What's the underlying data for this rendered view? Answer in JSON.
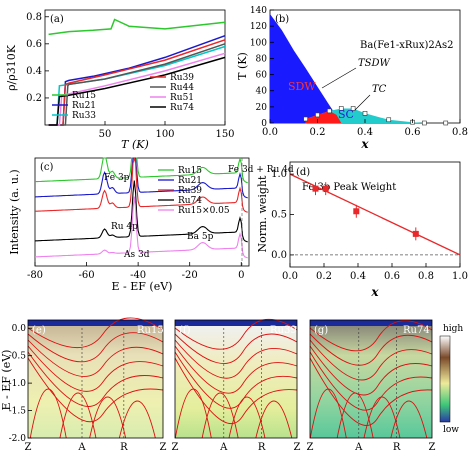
{
  "chart_data": [
    {
      "panel": "(a)",
      "type": "line",
      "xlabel": "T (K)",
      "ylabel": "ρ/ρ310K",
      "xlim": [
        0,
        150
      ],
      "ylim": [
        0,
        0.85
      ],
      "xticks": [
        "50",
        "100",
        "150"
      ],
      "yticks": [
        "0.2",
        "0.4",
        "0.6",
        "0.8"
      ],
      "legend_placement": "bottom-right",
      "series": [
        {
          "name": "Ru15",
          "color": "#2dc82d",
          "x": [
            3,
            20,
            40,
            55,
            58,
            70,
            100,
            150
          ],
          "y": [
            0.67,
            0.69,
            0.7,
            0.71,
            0.78,
            0.73,
            0.71,
            0.76
          ]
        },
        {
          "name": "Ru21",
          "color": "#1a1acc",
          "x": [
            3,
            15,
            17,
            20,
            40,
            70,
            100,
            150
          ],
          "y": [
            0.0,
            0.0,
            0.32,
            0.33,
            0.36,
            0.42,
            0.5,
            0.66
          ]
        },
        {
          "name": "Ru33",
          "color": "#00c8c8",
          "x": [
            3,
            10,
            12,
            20,
            50,
            100,
            150
          ],
          "y": [
            0.0,
            0.0,
            0.29,
            0.3,
            0.34,
            0.44,
            0.58
          ]
        },
        {
          "name": "Ru39",
          "color": "#e8282a",
          "x": [
            3,
            15,
            17,
            20,
            50,
            100,
            150
          ],
          "y": [
            0.0,
            0.0,
            0.3,
            0.31,
            0.37,
            0.48,
            0.63
          ]
        },
        {
          "name": "Ru44",
          "color": "#555555",
          "x": [
            3,
            17,
            19,
            20,
            50,
            100,
            150
          ],
          "y": [
            0.0,
            0.0,
            0.29,
            0.3,
            0.34,
            0.45,
            0.6
          ]
        },
        {
          "name": "Ru51",
          "color": "#ee82ee",
          "x": [
            3,
            12,
            14,
            20,
            50,
            100,
            150
          ],
          "y": [
            0.0,
            0.0,
            0.22,
            0.23,
            0.29,
            0.4,
            0.53
          ]
        },
        {
          "name": "Ru74",
          "color": "#000000",
          "x": [
            3,
            10,
            12,
            20,
            50,
            100,
            150
          ],
          "y": [
            0.0,
            0.0,
            0.21,
            0.22,
            0.27,
            0.37,
            0.5
          ]
        }
      ]
    },
    {
      "panel": "(b)",
      "type": "area",
      "title": "Ba(Fe1-xRux)2As2",
      "xlabel": "x",
      "ylabel": "T (K)",
      "xlim": [
        0,
        0.8
      ],
      "ylim": [
        0,
        140
      ],
      "xticks": [
        "0.0",
        "0.2",
        "0.4",
        "0.6",
        "0.8"
      ],
      "yticks": [
        "0",
        "20",
        "40",
        "60",
        "80",
        "100",
        "120",
        "140"
      ],
      "regions": [
        {
          "label": "SDW",
          "color": "#1a1aff"
        },
        {
          "label": "SC",
          "color": "#ff1a1a"
        }
      ],
      "annotations": [
        "TSDW",
        "TC"
      ],
      "series": [
        {
          "name": "TSDW",
          "x": [
            0.0,
            0.05,
            0.1,
            0.15,
            0.2,
            0.25,
            0.3
          ],
          "y": [
            135,
            115,
            90,
            68,
            45,
            22,
            0
          ]
        },
        {
          "name": "TC",
          "x": [
            0.15,
            0.2,
            0.25,
            0.3,
            0.35,
            0.4,
            0.5,
            0.6,
            0.65,
            0.74
          ],
          "y": [
            5,
            10,
            15,
            18,
            18,
            12,
            4,
            1,
            0,
            0
          ]
        }
      ]
    },
    {
      "panel": "(c)",
      "type": "line",
      "xlabel": "E - EF (eV)",
      "ylabel": "Intensity (a. u.)",
      "xlim": [
        -80,
        3
      ],
      "xticks": [
        "-80",
        "-60",
        "-40",
        "-20",
        "0"
      ],
      "legend_placement": "top-right",
      "annotations": [
        "Fe 3p",
        "Ru 4p",
        "As 3d",
        "Ba 5p",
        "Fe 3d + Ru 4d"
      ],
      "series": [
        {
          "name": "Ru15",
          "color": "#2dc82d",
          "offset": 0.94
        },
        {
          "name": "Ru21",
          "color": "#1a1acc",
          "offset": 0.75
        },
        {
          "name": "Ru39",
          "color": "#e8282a",
          "offset": 0.57
        },
        {
          "name": "Ru74",
          "color": "#000000",
          "offset": 0.2
        },
        {
          "name": "Ru15×0.05",
          "color": "#ee82ee",
          "offset": 0.0
        }
      ]
    },
    {
      "panel": "(d)",
      "type": "scatter",
      "title": "Fe 3p Peak Weight",
      "xlabel": "x",
      "ylabel": "Norm. weight",
      "xlim": [
        0,
        1.0
      ],
      "ylim": [
        -0.15,
        1.15
      ],
      "xticks": [
        "0.0",
        "0.2",
        "0.4",
        "0.6",
        "0.8",
        "1.0"
      ],
      "yticks": [
        "0.0",
        "0.5",
        "1.0"
      ],
      "points": {
        "x": [
          0.15,
          0.21,
          0.39,
          0.74
        ],
        "y": [
          0.82,
          0.82,
          0.54,
          0.26
        ],
        "err": [
          0.08,
          0.08,
          0.08,
          0.08
        ]
      },
      "fit": {
        "x": [
          0,
          1.0
        ],
        "y": [
          1.0,
          0.0
        ]
      }
    },
    {
      "panel": "(e)",
      "type": "heatmap",
      "title": "Ru15",
      "ylabel": "E - EF (eV)",
      "ylim": [
        -2.0,
        0.15
      ],
      "yticks": [
        "0.0",
        "-0.5",
        "-1.0",
        "-1.5",
        "-2.0"
      ],
      "xticks": [
        "Z",
        "A",
        "R",
        "Z"
      ]
    },
    {
      "panel": "(f)",
      "type": "heatmap",
      "title": "Ru39",
      "xticks": [
        "Z",
        "A",
        "R",
        "Z"
      ]
    },
    {
      "panel": "(g)",
      "type": "heatmap",
      "title": "Ru74",
      "xticks": [
        "Z",
        "A",
        "R",
        "Z"
      ],
      "colorbar": {
        "high": "high",
        "low": "low"
      }
    }
  ]
}
